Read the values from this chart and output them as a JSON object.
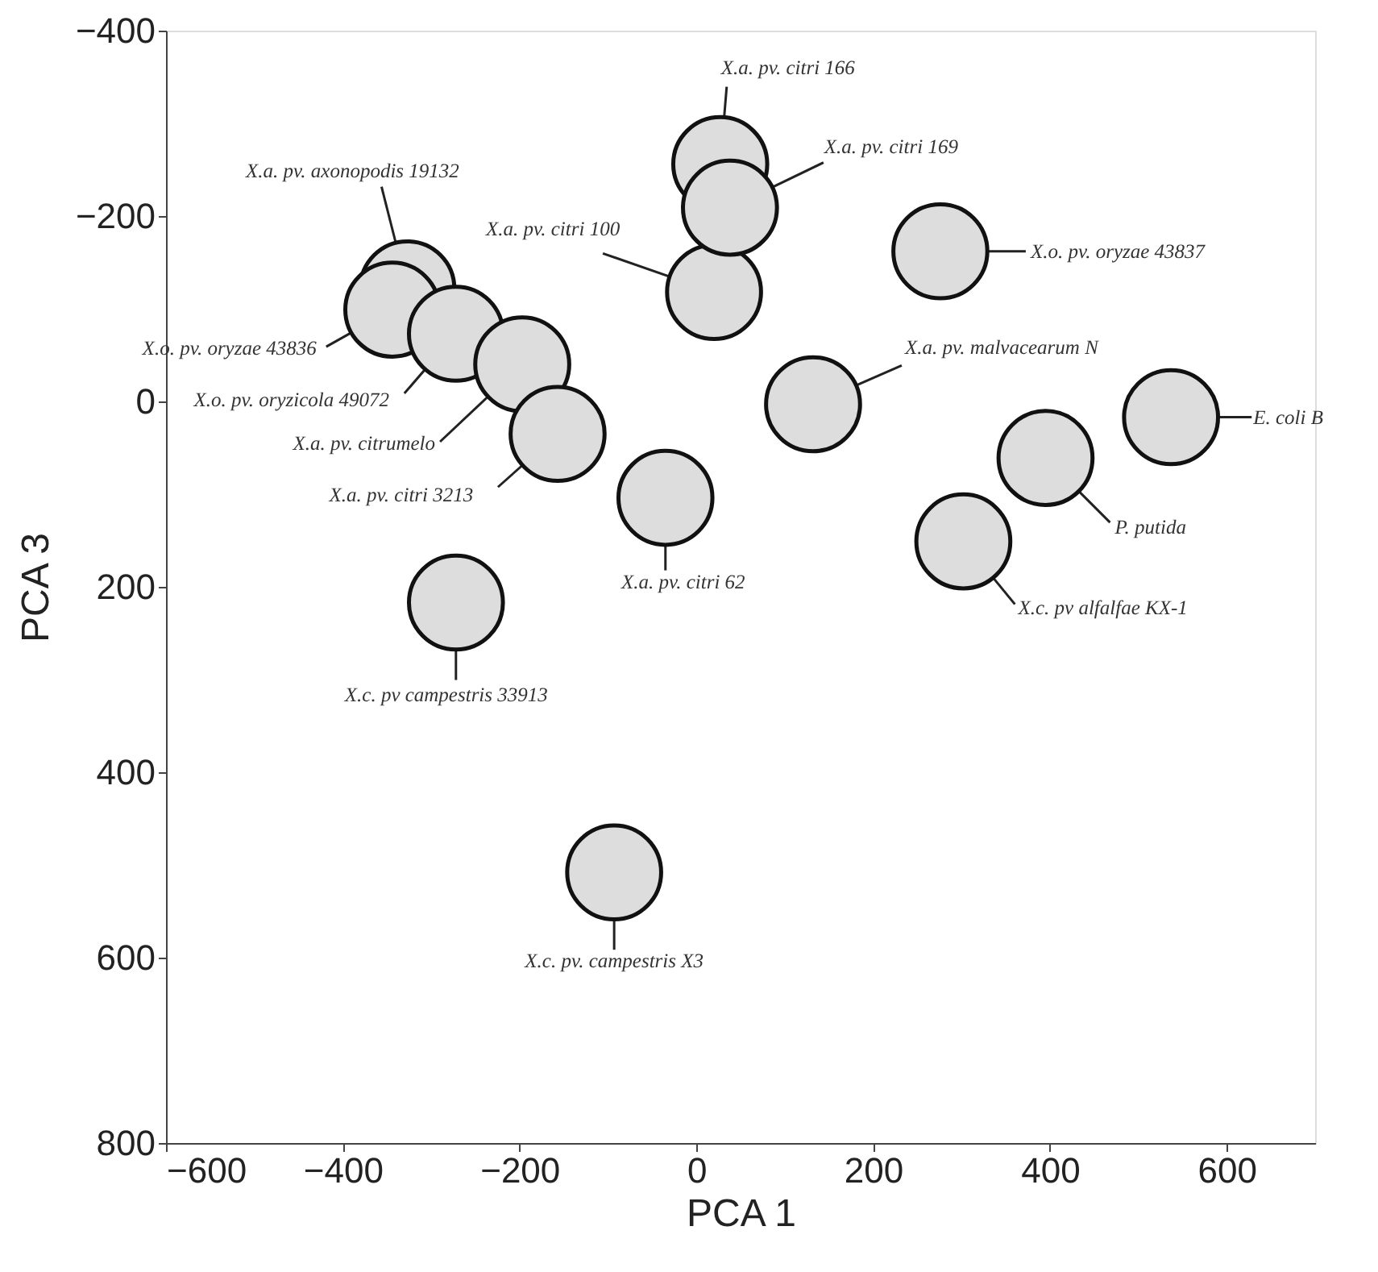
{
  "chart_data": {
    "type": "scatter",
    "xlabel": "PCA 1",
    "ylabel": "PCA 3",
    "xlim": [
      -600,
      700
    ],
    "xticks": [
      -600,
      -400,
      -200,
      0,
      200,
      400,
      600
    ],
    "ylim": [
      800,
      -400
    ],
    "yticks": [
      -400,
      -200,
      0,
      200,
      400,
      600,
      800
    ],
    "grid": false,
    "marker": "circle",
    "x": [
      -327,
      -344,
      -272,
      -197,
      -157,
      -272,
      -35,
      20,
      27,
      38,
      276,
      132,
      537,
      395,
      302,
      -93
    ],
    "series": [
      {
        "color": "#dddddd",
        "values": [
          -122,
          -99,
          -73,
          -40,
          35,
          217,
          104,
          -118,
          -256,
          -209,
          -162,
          3,
          17,
          61,
          151,
          508
        ]
      }
    ],
    "annotations": [
      {
        "text": "X.a. pv. axonopodis 19132",
        "x": -327,
        "y": -122
      },
      {
        "text": "X.o. pv. oryzae 43836",
        "x": -344,
        "y": -99
      },
      {
        "text": "X.o. pv. oryzicola 49072",
        "x": -272,
        "y": -73
      },
      {
        "text": "X.a. pv. citrumelo",
        "x": -197,
        "y": -40
      },
      {
        "text": "X.a. pv. citri 3213",
        "x": -157,
        "y": 35
      },
      {
        "text": "X.c. pv campestris 33913",
        "x": -272,
        "y": 217
      },
      {
        "text": "X.a. pv. citri 62",
        "x": -35,
        "y": 104
      },
      {
        "text": "X.a. pv. citri 100",
        "x": 20,
        "y": -118
      },
      {
        "text": "X.a. pv. citri 166",
        "x": 27,
        "y": -256
      },
      {
        "text": "X.a. pv. citri 169",
        "x": 38,
        "y": -209
      },
      {
        "text": "X.o. pv. oryzae 43837",
        "x": 276,
        "y": -162
      },
      {
        "text": "X.a. pv. malvacearum N",
        "x": 132,
        "y": 3
      },
      {
        "text": "E. coli B",
        "x": 537,
        "y": 17
      },
      {
        "text": "P. putida",
        "x": 395,
        "y": 61
      },
      {
        "text": "X.c. pv alfalfae KX-1",
        "x": 302,
        "y": 151
      },
      {
        "text": "X.c. pv. campestris X3",
        "x": -93,
        "y": 508
      }
    ]
  }
}
